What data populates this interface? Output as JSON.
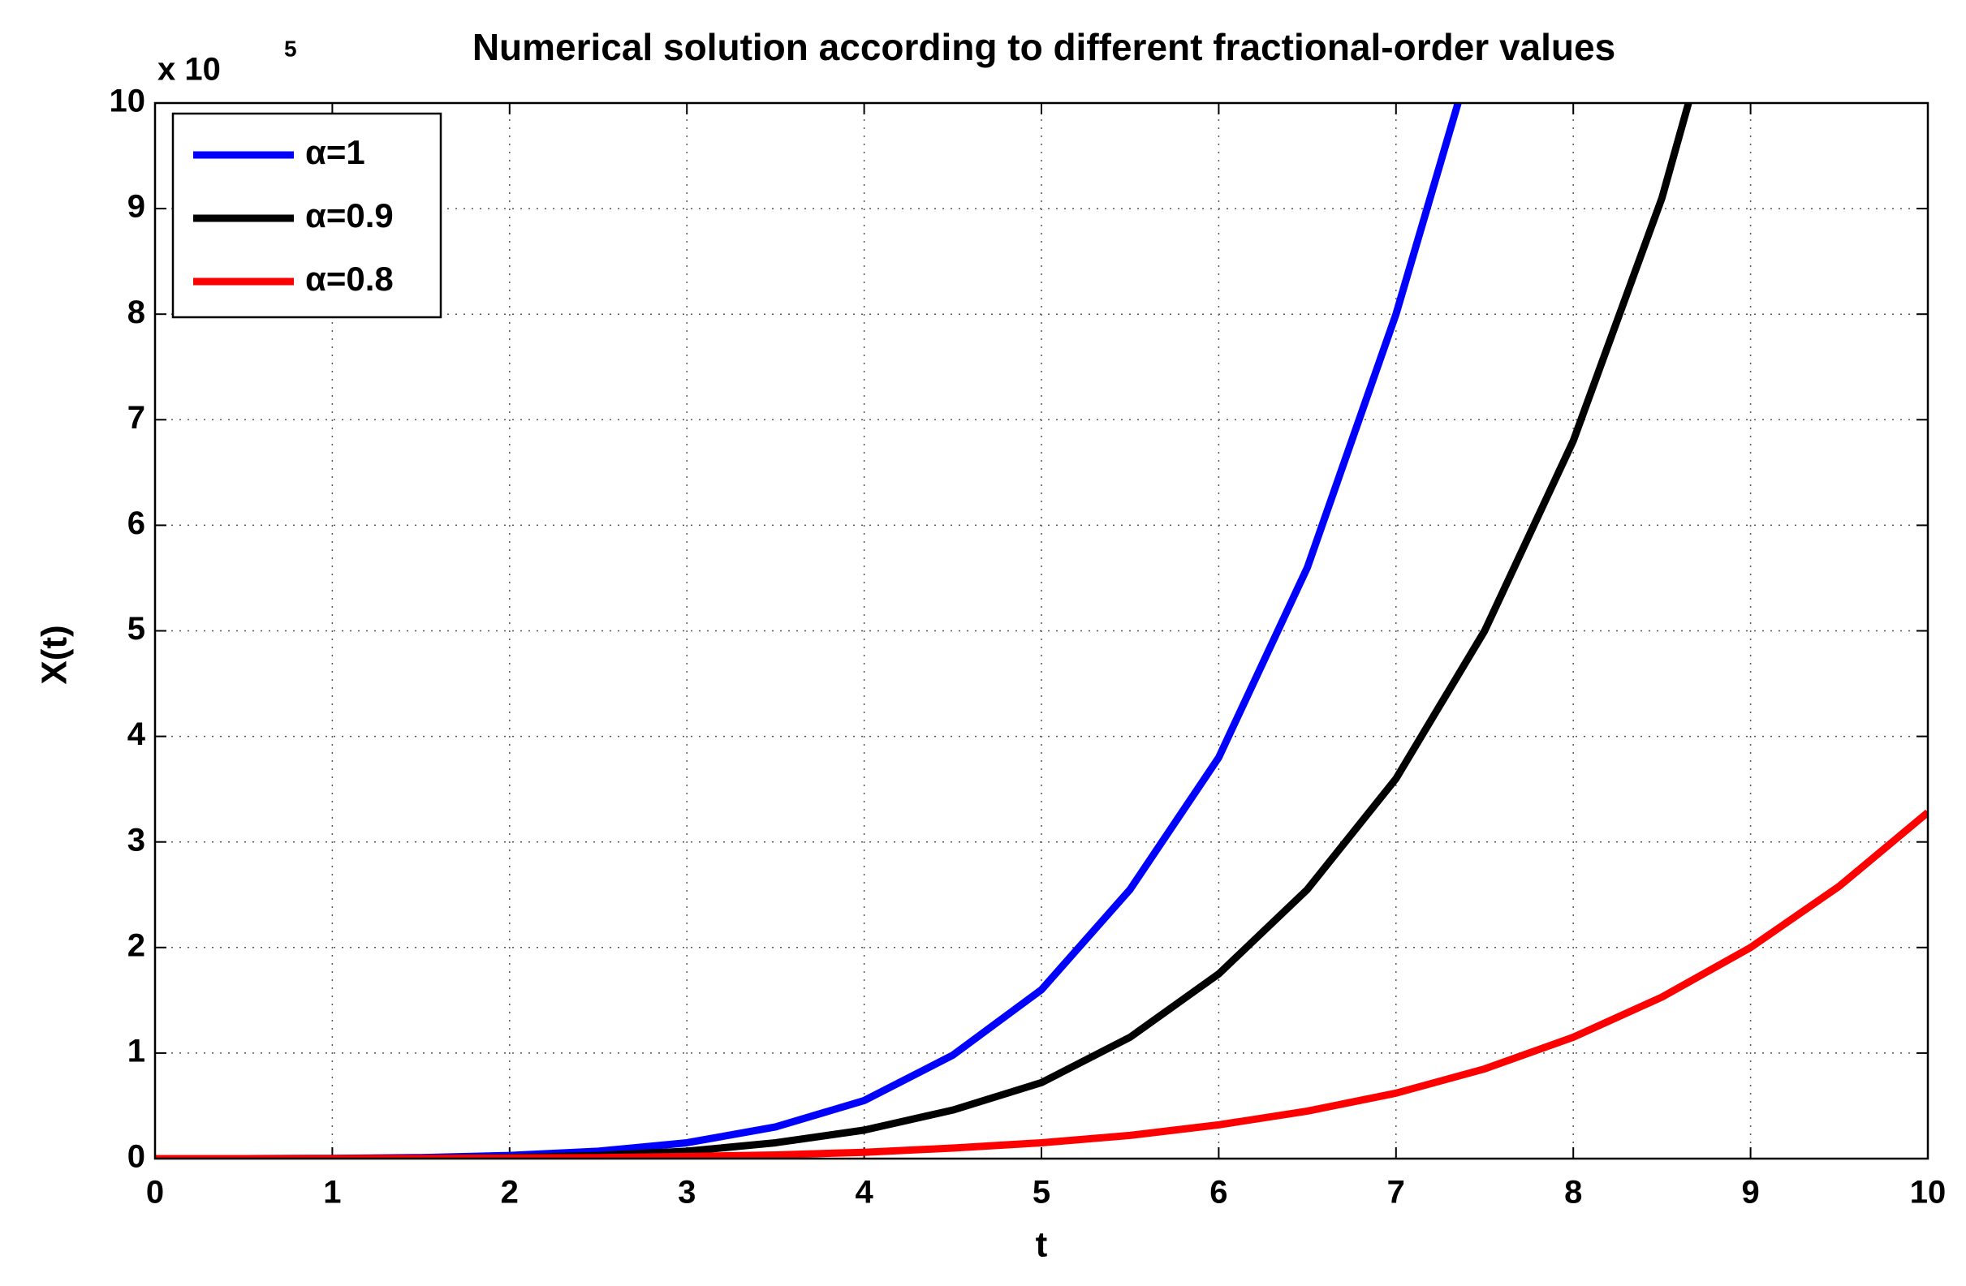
{
  "chart_data": {
    "type": "line",
    "title": "Numerical solution according to different fractional-order values",
    "x_label": "t",
    "y_label": "X(t)",
    "y_multiplier": {
      "base": "x 10",
      "exponent": "5"
    },
    "xlim": [
      0,
      10
    ],
    "ylim": [
      0,
      10
    ],
    "xticks": [
      0,
      1,
      2,
      3,
      4,
      5,
      6,
      7,
      8,
      9,
      10
    ],
    "yticks": [
      0,
      1,
      2,
      3,
      4,
      5,
      6,
      7,
      8,
      9,
      10
    ],
    "grid": true,
    "legend": "upper left",
    "series": [
      {
        "name": "α=1",
        "color": "#0000ff",
        "x": [
          0,
          0.5,
          1,
          1.5,
          2,
          2.5,
          3,
          3.5,
          4,
          4.5,
          5,
          5.5,
          6,
          6.5,
          7,
          7.35
        ],
        "values": [
          0,
          0,
          0.002,
          0.01,
          0.03,
          0.07,
          0.15,
          0.3,
          0.55,
          0.98,
          1.6,
          2.55,
          3.8,
          5.6,
          8.0,
          10
        ]
      },
      {
        "name": "α=0.9",
        "color": "#000000",
        "x": [
          0,
          0.5,
          1,
          1.5,
          2,
          2.5,
          3,
          3.5,
          4,
          4.5,
          5,
          5.5,
          6,
          6.5,
          7,
          7.5,
          8,
          8.5,
          8.65
        ],
        "values": [
          0,
          0,
          0.001,
          0.004,
          0.01,
          0.03,
          0.07,
          0.15,
          0.27,
          0.46,
          0.72,
          1.15,
          1.75,
          2.55,
          3.6,
          5.0,
          6.8,
          9.1,
          10
        ]
      },
      {
        "name": "α=0.8",
        "color": "#ff0000",
        "x": [
          0,
          0.5,
          1,
          1.5,
          2,
          2.5,
          3,
          3.5,
          4,
          4.5,
          5,
          5.5,
          6,
          6.5,
          7,
          7.5,
          8,
          8.5,
          9,
          9.5,
          10
        ],
        "values": [
          0,
          0,
          0,
          0.002,
          0.005,
          0.01,
          0.02,
          0.035,
          0.06,
          0.1,
          0.15,
          0.22,
          0.32,
          0.45,
          0.62,
          0.85,
          1.15,
          1.53,
          2.0,
          2.58,
          3.28
        ]
      }
    ]
  }
}
